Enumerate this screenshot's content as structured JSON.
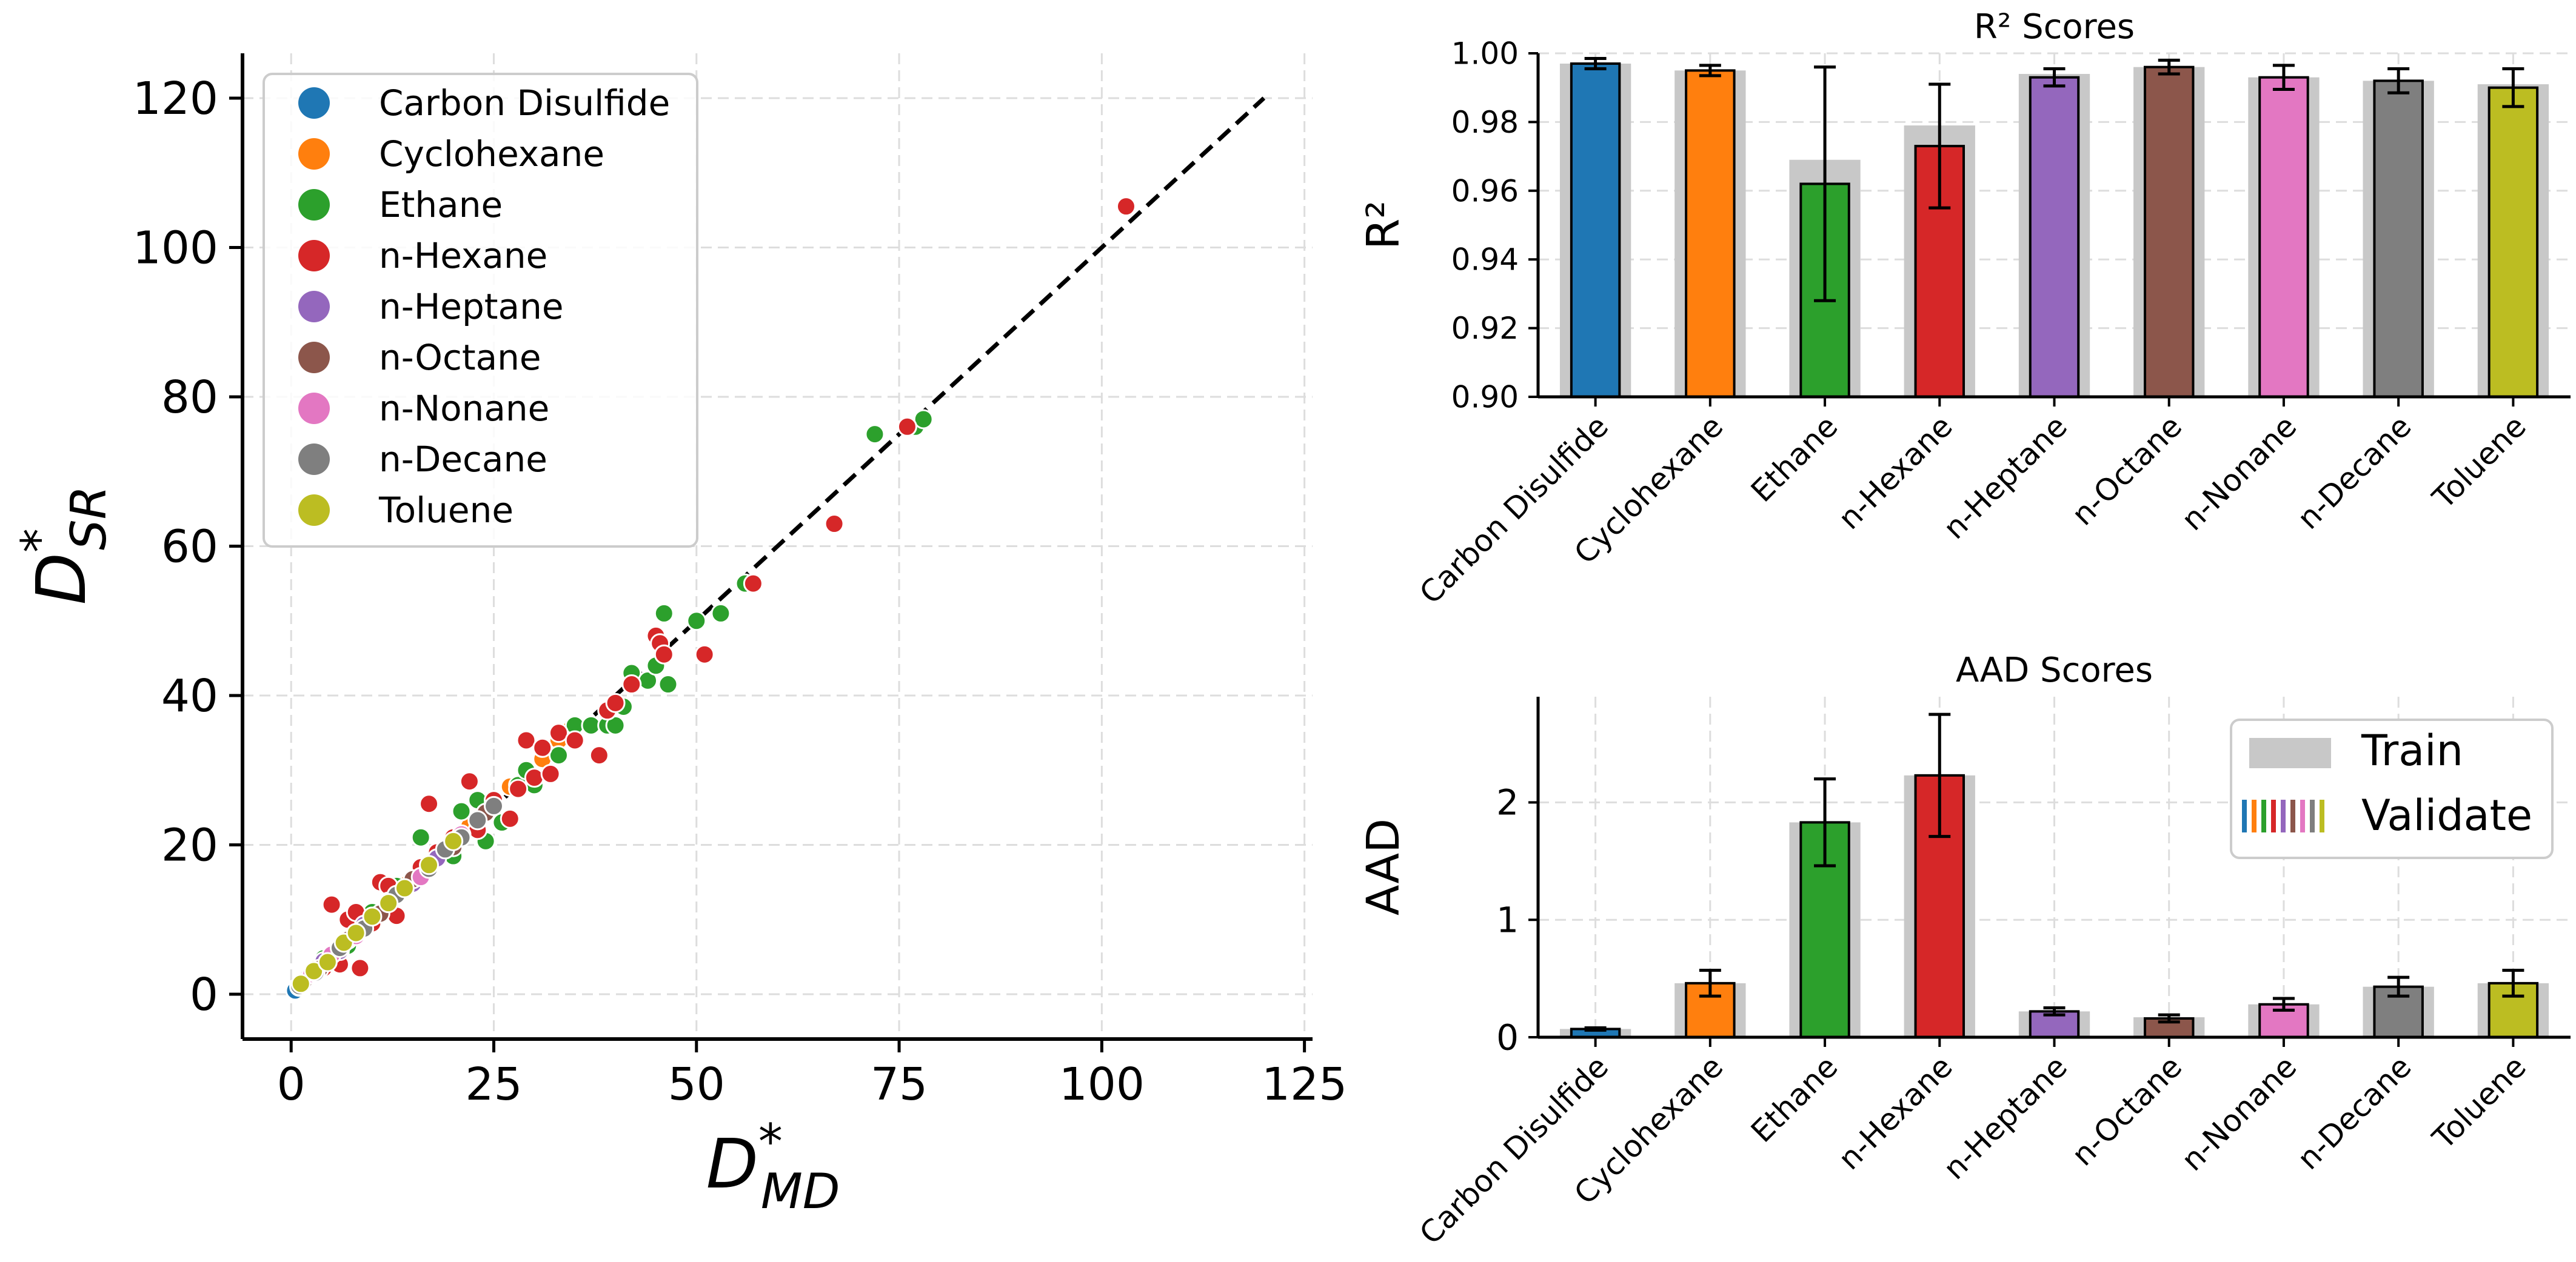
{
  "colors": {
    "Carbon Disulfide": "#1f77b4",
    "Cyclohexane": "#ff7f0e",
    "Ethane": "#2ca02c",
    "n-Hexane": "#d62728",
    "n-Heptane": "#9467bd",
    "n-Octane": "#8c564b",
    "n-Nonane": "#e377c2",
    "n-Decane": "#7f7f7f",
    "Toluene": "#bcbd22",
    "train_bar": "#c8c8c8",
    "grid": "#dddddd",
    "identity_line": "#000000"
  },
  "chart_data": [
    {
      "type": "scatter",
      "title": "",
      "xlabel": "D*_MD",
      "ylabel": "D*_SR",
      "xlabel_base": "D",
      "xlabel_sup": "*",
      "xlabel_sub": "MD",
      "ylabel_base": "D",
      "ylabel_sup": "*",
      "ylabel_sub": "SR",
      "xlim": [
        -6,
        126
      ],
      "ylim": [
        -6,
        126
      ],
      "xticks": [
        0,
        25,
        50,
        75,
        100,
        125
      ],
      "yticks": [
        0,
        20,
        40,
        60,
        80,
        100,
        120
      ],
      "grid": true,
      "legend_position": "top-left",
      "identity_line": [
        0,
        120
      ],
      "series": [
        {
          "name": "Carbon Disulfide",
          "points": [
            [
              0.5,
              0.5
            ],
            [
              1.1,
              1.0
            ],
            [
              1.8,
              1.7
            ],
            [
              2.4,
              2.5
            ],
            [
              3.2,
              3.0
            ],
            [
              4.0,
              4.2
            ],
            [
              5.1,
              4.8
            ],
            [
              6.0,
              6.3
            ],
            [
              7.2,
              7.0
            ],
            [
              8.5,
              8.8
            ]
          ]
        },
        {
          "name": "Cyclohexane",
          "points": [
            [
              1.5,
              1.8
            ],
            [
              3.0,
              3.4
            ],
            [
              5.5,
              5.2
            ],
            [
              8.0,
              8.4
            ],
            [
              11,
              10.6
            ],
            [
              14,
              14.6
            ],
            [
              18,
              18.4
            ],
            [
              22,
              22.5
            ],
            [
              27,
              27.8
            ],
            [
              31,
              31.5
            ],
            [
              33,
              34
            ],
            [
              34.5,
              35.5
            ]
          ]
        },
        {
          "name": "Ethane",
          "points": [
            [
              2,
              2.4
            ],
            [
              4,
              4.8
            ],
            [
              7,
              6.5
            ],
            [
              10,
              11
            ],
            [
              13,
              14.5
            ],
            [
              16,
              21
            ],
            [
              18,
              19
            ],
            [
              20,
              18.5
            ],
            [
              21,
              24.5
            ],
            [
              23,
              26
            ],
            [
              24,
              20.5
            ],
            [
              25,
              25.5
            ],
            [
              26,
              23
            ],
            [
              28,
              28
            ],
            [
              29,
              30
            ],
            [
              30,
              28
            ],
            [
              31,
              33
            ],
            [
              33,
              32
            ],
            [
              35,
              36
            ],
            [
              37,
              36
            ],
            [
              39,
              36
            ],
            [
              40,
              36
            ],
            [
              41,
              38.5
            ],
            [
              42,
              43
            ],
            [
              44,
              42
            ],
            [
              45,
              44
            ],
            [
              46,
              51
            ],
            [
              46.5,
              41.5
            ],
            [
              50,
              50
            ],
            [
              53,
              51
            ],
            [
              56,
              55
            ],
            [
              72,
              75
            ],
            [
              77,
              76
            ],
            [
              78,
              77
            ]
          ]
        },
        {
          "name": "n-Hexane",
          "points": [
            [
              1,
              1
            ],
            [
              2.5,
              2.6
            ],
            [
              4,
              3.5
            ],
            [
              5,
              12
            ],
            [
              6,
              4
            ],
            [
              7,
              10
            ],
            [
              8,
              11
            ],
            [
              8.5,
              3.5
            ],
            [
              10,
              9.5
            ],
            [
              11,
              15
            ],
            [
              12,
              14.5
            ],
            [
              13,
              10.5
            ],
            [
              15,
              15.2
            ],
            [
              16,
              17
            ],
            [
              17,
              25.5
            ],
            [
              18,
              19
            ],
            [
              20,
              21
            ],
            [
              22,
              28.5
            ],
            [
              23,
              22
            ],
            [
              25,
              26
            ],
            [
              27,
              23.5
            ],
            [
              28,
              27.5
            ],
            [
              29,
              34
            ],
            [
              30,
              29
            ],
            [
              31,
              33
            ],
            [
              32,
              29.5
            ],
            [
              33,
              35
            ],
            [
              35,
              34
            ],
            [
              38,
              32
            ],
            [
              39,
              38
            ],
            [
              40,
              39
            ],
            [
              42,
              41.5
            ],
            [
              45,
              48
            ],
            [
              45.5,
              47
            ],
            [
              46,
              45.5
            ],
            [
              51,
              45.5
            ],
            [
              57,
              55
            ],
            [
              67,
              63
            ],
            [
              76,
              76
            ],
            [
              103,
              105.5
            ]
          ]
        },
        {
          "name": "n-Heptane",
          "points": [
            [
              2,
              2.2
            ],
            [
              4,
              4.4
            ],
            [
              6,
              5.8
            ],
            [
              9,
              9.3
            ],
            [
              12,
              12.3
            ],
            [
              15,
              14.8
            ],
            [
              18,
              18.2
            ],
            [
              21,
              21.3
            ]
          ]
        },
        {
          "name": "n-Octane",
          "points": [
            [
              1.5,
              1.6
            ],
            [
              3.5,
              3.4
            ],
            [
              7,
              7.3
            ],
            [
              11,
              10.8
            ],
            [
              15,
              15.4
            ],
            [
              20,
              19.7
            ],
            [
              24,
              24.3
            ]
          ]
        },
        {
          "name": "n-Nonane",
          "points": [
            [
              2.5,
              2.7
            ],
            [
              5,
              5.3
            ],
            [
              8,
              7.8
            ],
            [
              12,
              12.4
            ],
            [
              16,
              15.7
            ],
            [
              21,
              21.4
            ]
          ]
        },
        {
          "name": "n-Decane",
          "points": [
            [
              1,
              1.1
            ],
            [
              3,
              2.9
            ],
            [
              6,
              6.2
            ],
            [
              9,
              8.8
            ],
            [
              13,
              13.3
            ],
            [
              17,
              16.8
            ],
            [
              19,
              19.4
            ],
            [
              21,
              21.0
            ],
            [
              23,
              23.3
            ],
            [
              25,
              25.2
            ]
          ]
        },
        {
          "name": "Toluene",
          "points": [
            [
              1.2,
              1.4
            ],
            [
              2.8,
              3.1
            ],
            [
              4.5,
              4.3
            ],
            [
              6.5,
              6.9
            ],
            [
              8,
              8.2
            ],
            [
              10,
              10.4
            ],
            [
              12,
              12.2
            ],
            [
              14,
              14.2
            ],
            [
              17,
              17.3
            ],
            [
              20,
              20.5
            ]
          ]
        }
      ]
    },
    {
      "type": "bar",
      "title": "R² Scores",
      "xlabel": "",
      "ylabel": "R²",
      "ylim": [
        0.9,
        1.0
      ],
      "yticks": [
        0.9,
        0.92,
        0.94,
        0.96,
        0.98,
        1.0
      ],
      "ytick_labels": [
        "0.90",
        "0.92",
        "0.94",
        "0.96",
        "0.98",
        "1.00"
      ],
      "grid": true,
      "categories": [
        "Carbon Disulfide",
        "Cyclohexane",
        "Ethane",
        "n-Hexane",
        "n-Heptane",
        "n-Octane",
        "n-Nonane",
        "n-Decane",
        "Toluene"
      ],
      "series": [
        {
          "name": "Train",
          "values": [
            0.997,
            0.995,
            0.969,
            0.979,
            0.994,
            0.996,
            0.993,
            0.992,
            0.991
          ]
        },
        {
          "name": "Validate",
          "values": [
            0.997,
            0.995,
            0.962,
            0.973,
            0.993,
            0.996,
            0.993,
            0.992,
            0.99
          ],
          "error": [
            0.0015,
            0.0015,
            0.034,
            0.018,
            0.0025,
            0.002,
            0.0035,
            0.0035,
            0.0055
          ]
        }
      ]
    },
    {
      "type": "bar",
      "title": "AAD Scores",
      "xlabel": "",
      "ylabel": "AAD",
      "ylim": [
        0,
        2.9
      ],
      "yticks": [
        0,
        1,
        2
      ],
      "ytick_labels": [
        "0",
        "1",
        "2"
      ],
      "grid": true,
      "legend_position": "top-right",
      "legend": [
        "Train",
        "Validate"
      ],
      "categories": [
        "Carbon Disulfide",
        "Cyclohexane",
        "Ethane",
        "n-Hexane",
        "n-Heptane",
        "n-Octane",
        "n-Nonane",
        "n-Decane",
        "Toluene"
      ],
      "series": [
        {
          "name": "Train",
          "values": [
            0.07,
            0.46,
            1.83,
            2.23,
            0.22,
            0.17,
            0.28,
            0.43,
            0.46
          ]
        },
        {
          "name": "Validate",
          "values": [
            0.07,
            0.46,
            1.83,
            2.23,
            0.22,
            0.16,
            0.28,
            0.43,
            0.46
          ],
          "error": [
            0.01,
            0.11,
            0.37,
            0.52,
            0.03,
            0.03,
            0.05,
            0.08,
            0.11
          ]
        }
      ]
    }
  ]
}
